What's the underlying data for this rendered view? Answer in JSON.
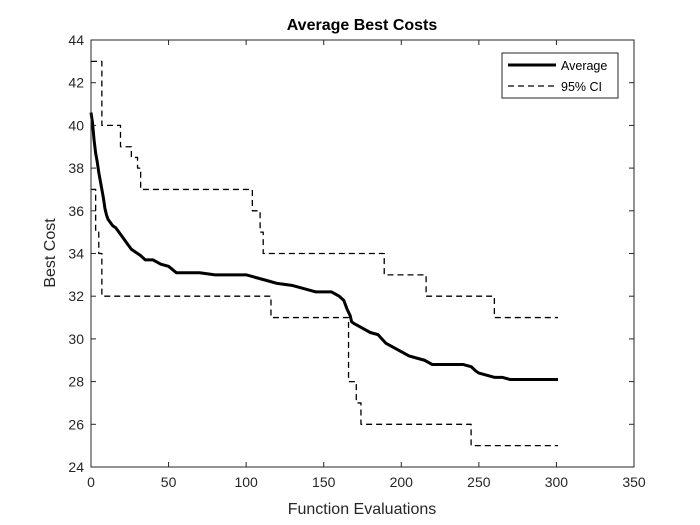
{
  "chart_data": {
    "type": "line",
    "title": "Average Best Costs",
    "xlabel": "Function Evaluations",
    "ylabel": "Best Cost",
    "xlim": [
      0,
      350
    ],
    "ylim": [
      24,
      44
    ],
    "xticks": [
      0,
      50,
      100,
      150,
      200,
      250,
      300,
      350
    ],
    "yticks": [
      24,
      26,
      28,
      30,
      32,
      34,
      36,
      38,
      40,
      42,
      44
    ],
    "grid": false,
    "legend_position": "top-right",
    "legend": [
      "Average",
      "95% CI"
    ],
    "series": [
      {
        "name": "Average",
        "style": "solid",
        "color": "#000000",
        "x": [
          0,
          1,
          2,
          3,
          4,
          5,
          6,
          7,
          8,
          9,
          10,
          11,
          12,
          14,
          16,
          18,
          20,
          22,
          24,
          26,
          28,
          30,
          32,
          35,
          38,
          40,
          45,
          50,
          55,
          60,
          70,
          80,
          90,
          100,
          105,
          110,
          115,
          120,
          130,
          140,
          145,
          150,
          155,
          160,
          163,
          165,
          167,
          168,
          170,
          175,
          180,
          185,
          190,
          195,
          200,
          205,
          210,
          215,
          220,
          230,
          240,
          245,
          248,
          250,
          255,
          260,
          265,
          270,
          280,
          290,
          301
        ],
        "y": [
          40.6,
          40.1,
          39.3,
          38.7,
          38.3,
          37.8,
          37.4,
          37.0,
          36.6,
          36.1,
          35.8,
          35.6,
          35.5,
          35.3,
          35.2,
          35.0,
          34.8,
          34.6,
          34.4,
          34.2,
          34.1,
          34.0,
          33.9,
          33.7,
          33.7,
          33.7,
          33.5,
          33.4,
          33.1,
          33.1,
          33.1,
          33.0,
          33.0,
          33.0,
          32.9,
          32.8,
          32.7,
          32.6,
          32.5,
          32.3,
          32.2,
          32.2,
          32.2,
          32.0,
          31.8,
          31.4,
          31.1,
          30.8,
          30.7,
          30.5,
          30.3,
          30.2,
          29.8,
          29.6,
          29.4,
          29.2,
          29.1,
          29.0,
          28.8,
          28.8,
          28.8,
          28.7,
          28.5,
          28.4,
          28.3,
          28.2,
          28.2,
          28.1,
          28.1,
          28.1,
          28.1
        ]
      },
      {
        "name": "95% CI",
        "style": "dashed",
        "color": "#000000",
        "x": [
          0,
          7,
          7,
          19,
          19,
          26,
          26,
          30,
          30,
          32,
          32,
          104,
          104,
          109,
          109,
          111,
          111,
          189,
          189,
          216,
          216,
          260,
          260,
          301
        ],
        "y": [
          43,
          43,
          40,
          40,
          39,
          39,
          38.5,
          38.5,
          38,
          38,
          37,
          37,
          36,
          36,
          35,
          35,
          34,
          34,
          33,
          33,
          32,
          32,
          31,
          31
        ]
      },
      {
        "name": "95% CI lower",
        "style": "dashed",
        "color": "#000000",
        "x": [
          0,
          3,
          3,
          5,
          5,
          7,
          7,
          116,
          116,
          166,
          166,
          171,
          171,
          174,
          174,
          245,
          245,
          301
        ],
        "y": [
          37,
          37,
          35,
          35,
          34,
          34,
          32,
          32,
          31,
          31,
          28,
          28,
          27,
          27,
          26,
          26,
          25,
          25
        ]
      }
    ]
  }
}
